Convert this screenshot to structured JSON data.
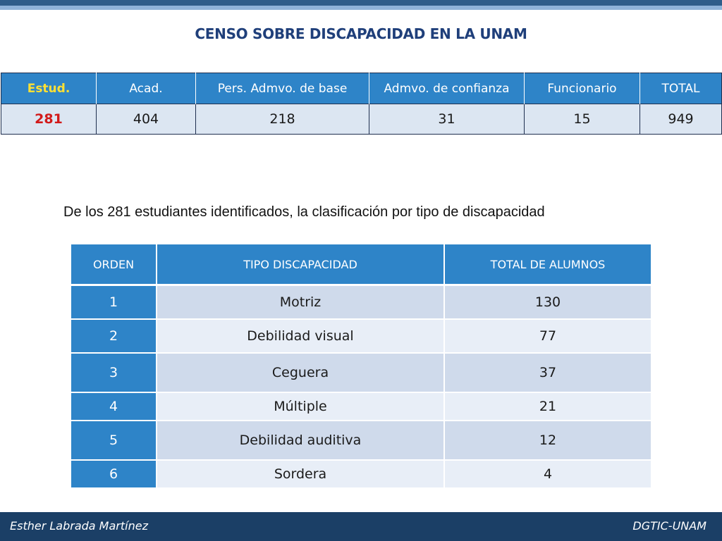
{
  "title": "CENSO SOBRE DISCAPACIDAD EN LA UNAM",
  "census": {
    "headers": [
      "Estud.",
      "Acad.",
      "Pers. Admvo. de base",
      "Admvo. de confianza",
      "Funcionario",
      "TOTAL"
    ],
    "values": [
      "281",
      "404",
      "218",
      "31",
      "15",
      "949"
    ]
  },
  "caption": "De los 281 estudiantes identificados, la clasificación por tipo de discapacidad",
  "disability": {
    "headers": [
      "ORDEN",
      "TIPO DISCAPACIDAD",
      "TOTAL DE ALUMNOS"
    ],
    "rows": [
      {
        "orden": "1",
        "tipo": "Motriz",
        "total": "130"
      },
      {
        "orden": "2",
        "tipo": "Debilidad visual",
        "total": "77"
      },
      {
        "orden": "3",
        "tipo": "Ceguera",
        "total": "37"
      },
      {
        "orden": "4",
        "tipo": "Múltiple",
        "total": "21"
      },
      {
        "orden": "5",
        "tipo": "Debilidad auditiva",
        "total": "12"
      },
      {
        "orden": "6",
        "tipo": "Sordera",
        "total": "4"
      }
    ]
  },
  "footer": {
    "left": "Esther Labrada Martínez",
    "right": "DGTIC-UNAM"
  },
  "colors": {
    "header_blue": "#2e84c8",
    "footer_navy": "#1b3f66",
    "title_blue": "#1f3f7a",
    "highlight_red": "#d21a1a",
    "highlight_yellow": "#ffe033"
  }
}
